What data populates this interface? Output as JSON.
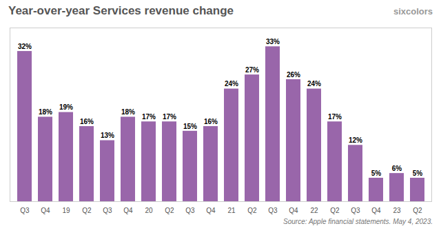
{
  "chart_data": {
    "type": "bar",
    "title": "Year-over-year Services revenue change",
    "categories": [
      "Q3",
      "Q4",
      "19",
      "Q2",
      "Q3",
      "Q4",
      "20",
      "Q2",
      "Q3",
      "Q4",
      "21",
      "Q2",
      "Q3",
      "Q4",
      "22",
      "Q2",
      "Q3",
      "Q4",
      "23",
      "Q2"
    ],
    "values": [
      32,
      18,
      19,
      16,
      13,
      18,
      17,
      17,
      15,
      16,
      24,
      27,
      33,
      26,
      24,
      17,
      12,
      5,
      6,
      5
    ],
    "value_labels": [
      "32%",
      "18%",
      "19%",
      "16%",
      "13%",
      "18%",
      "17%",
      "17%",
      "15%",
      "16%",
      "24%",
      "27%",
      "33%",
      "26%",
      "24%",
      "17%",
      "12%",
      "5%",
      "6%",
      "5%"
    ],
    "data_labels": true,
    "color": "#9966aa",
    "ylim": [
      0,
      37
    ],
    "tick_labels": "x",
    "grid": false,
    "annotations": [
      "sixcolors",
      "Source: Apple financial statements. May 4, 2023."
    ]
  }
}
